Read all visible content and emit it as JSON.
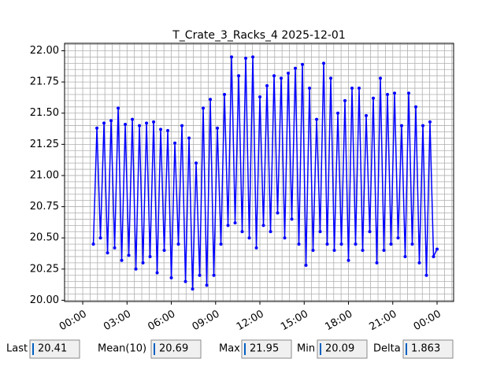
{
  "chart_data": {
    "type": "line",
    "title": "T_Crate_3_Racks_4 2025-12-01",
    "x": [
      0.72,
      0.96,
      1.2,
      1.44,
      1.68,
      1.92,
      2.16,
      2.4,
      2.64,
      2.88,
      3.12,
      3.36,
      3.6,
      3.84,
      4.08,
      4.32,
      4.56,
      4.8,
      5.04,
      5.28,
      5.52,
      5.76,
      6,
      6.24,
      6.48,
      6.72,
      6.96,
      7.2,
      7.44,
      7.68,
      7.92,
      8.16,
      8.4,
      8.64,
      8.88,
      9.12,
      9.36,
      9.6,
      9.84,
      10.08,
      10.32,
      10.56,
      10.8,
      11.04,
      11.28,
      11.52,
      11.76,
      12,
      12.24,
      12.48,
      12.72,
      12.96,
      13.2,
      13.44,
      13.68,
      13.92,
      14.16,
      14.4,
      14.64,
      14.88,
      15.12,
      15.36,
      15.6,
      15.84,
      16.08,
      16.32,
      16.56,
      16.8,
      17.04,
      17.28,
      17.52,
      17.76,
      18,
      18.24,
      18.48,
      18.72,
      18.96,
      19.2,
      19.44,
      19.68,
      19.92,
      20.16,
      20.4,
      20.64,
      20.88,
      21.12,
      21.36,
      21.6,
      21.84,
      22.08,
      22.32,
      22.56,
      22.8,
      23.04,
      23.28,
      23.52,
      23.76,
      24
    ],
    "series": [
      {
        "name": "T_Crate_3_Racks_4",
        "color": "#0000ff",
        "values": [
          20.45,
          21.38,
          20.5,
          21.42,
          20.38,
          21.44,
          20.42,
          21.54,
          20.32,
          21.41,
          20.36,
          21.45,
          20.25,
          21.4,
          20.3,
          21.42,
          20.35,
          21.43,
          20.22,
          21.37,
          20.4,
          21.36,
          20.18,
          21.26,
          20.45,
          21.4,
          20.15,
          21.3,
          20.09,
          21.1,
          20.2,
          21.54,
          20.12,
          21.61,
          20.2,
          21.38,
          20.45,
          21.65,
          20.6,
          21.95,
          20.62,
          21.8,
          20.55,
          21.94,
          20.5,
          21.95,
          20.42,
          21.63,
          20.6,
          21.72,
          20.55,
          21.8,
          20.7,
          21.78,
          20.5,
          21.82,
          20.65,
          21.86,
          20.45,
          21.89,
          20.28,
          21.7,
          20.4,
          21.45,
          20.55,
          21.9,
          20.45,
          21.78,
          20.4,
          21.5,
          20.45,
          21.6,
          20.32,
          21.7,
          20.45,
          21.7,
          20.4,
          21.48,
          20.55,
          21.62,
          20.3,
          21.78,
          20.4,
          21.65,
          20.45,
          21.66,
          20.5,
          21.4,
          20.35,
          21.66,
          20.45,
          21.55,
          20.3,
          21.4,
          20.2,
          21.43,
          20.35,
          20.41
        ]
      }
    ],
    "xlim": [
      -1.23,
      25.12
    ],
    "xticks": [
      {
        "value": 0,
        "label": "00:00"
      },
      {
        "value": 3,
        "label": "03:00"
      },
      {
        "value": 6,
        "label": "06:00"
      },
      {
        "value": 9,
        "label": "09:00"
      },
      {
        "value": 12,
        "label": "12:00"
      },
      {
        "value": 15,
        "label": "15:00"
      },
      {
        "value": 18,
        "label": "18:00"
      },
      {
        "value": 21,
        "label": "21:00"
      },
      {
        "value": 24,
        "label": "00:00"
      }
    ],
    "ylim": [
      19.99,
      22.06
    ],
    "yticks": [
      {
        "value": 20,
        "label": "20.00"
      },
      {
        "value": 20.25,
        "label": "20.25"
      },
      {
        "value": 20.5,
        "label": "20.50"
      },
      {
        "value": 20.75,
        "label": "20.75"
      },
      {
        "value": 21,
        "label": "21.00"
      },
      {
        "value": 21.25,
        "label": "21.25"
      },
      {
        "value": 21.5,
        "label": "21.50"
      },
      {
        "value": 21.75,
        "label": "21.75"
      },
      {
        "value": 22,
        "label": "22.00"
      }
    ],
    "grid": true,
    "minor_grid_step": [
      0.5,
      0.05
    ]
  },
  "stats": [
    {
      "label": "Last",
      "value": "20.41"
    },
    {
      "label": "Mean(10)",
      "value": "20.69"
    },
    {
      "label": "Max",
      "value": "21.95"
    },
    {
      "label": "Min",
      "value": "20.09"
    },
    {
      "label": "Delta",
      "value": "1.863"
    }
  ]
}
